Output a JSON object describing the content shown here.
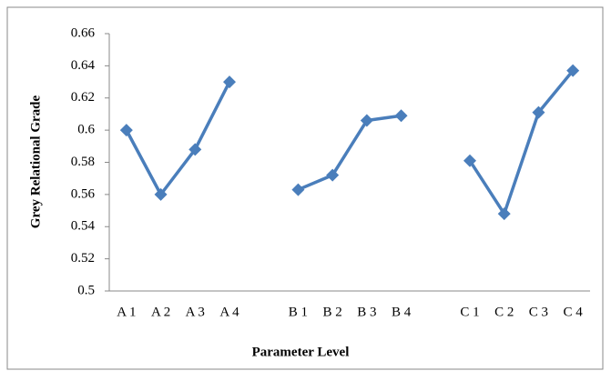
{
  "chart_data": {
    "type": "line",
    "x_label": "Parameter Level",
    "y_label": "Grey Relational Grade",
    "categories": [
      "A 1",
      "A 2",
      "A 3",
      "A 4",
      null,
      "B 1",
      "B 2",
      "B 3",
      "B 4",
      null,
      "C 1",
      "C 2",
      "C 3",
      "C 4"
    ],
    "series": [
      {
        "color": "#4a7ebb",
        "values": [
          0.6,
          0.56,
          0.588,
          0.63,
          null,
          0.563,
          0.572,
          0.606,
          0.609,
          null,
          0.581,
          0.548,
          0.611,
          0.637
        ]
      }
    ],
    "ylim": [
      0.5,
      0.66
    ],
    "yticks": [
      0.5,
      0.52,
      0.54,
      0.56,
      0.58,
      0.6,
      0.62,
      0.64,
      0.66
    ],
    "grid": false
  }
}
